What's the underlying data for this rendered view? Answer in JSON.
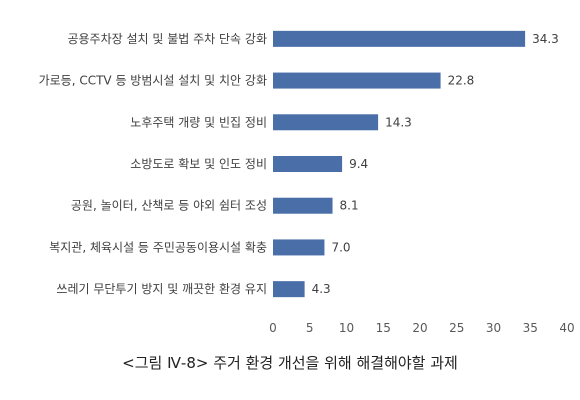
{
  "chart_data": {
    "type": "bar",
    "orientation": "horizontal",
    "categories": [
      "공용주차장 설치 및 불법 주차 단속 강화",
      "가로등, CCTV 등 방범시설 설치 및 치안 강화",
      "노후주택 개량 및 빈집 정비",
      "소방도로 확보 및 인도 정비",
      "공원, 놀이터, 산책로 등 야외 쉼터 조성",
      "복지관, 체육시설 등 주민공동이용시설 확충",
      "쓰레기 무단투기 방지 및 깨끗한 환경 유지"
    ],
    "values": [
      34.3,
      22.8,
      14.3,
      9.4,
      8.1,
      7.0,
      4.3
    ],
    "value_labels": [
      "34.3",
      "22.8",
      "14.3",
      "9.4",
      "8.1",
      "7.0",
      "4.3"
    ],
    "xlim": [
      0,
      40
    ],
    "xticks": [
      "0",
      "5",
      "10",
      "15",
      "20",
      "25",
      "30",
      "35",
      "40"
    ],
    "title": "",
    "xlabel": "",
    "ylabel": "",
    "grid": false,
    "legend": "none",
    "bar_color": "#4a6ea8"
  },
  "caption": "<그림 Ⅳ-8> 주거 환경 개선을 위해 해결해야할 과제"
}
